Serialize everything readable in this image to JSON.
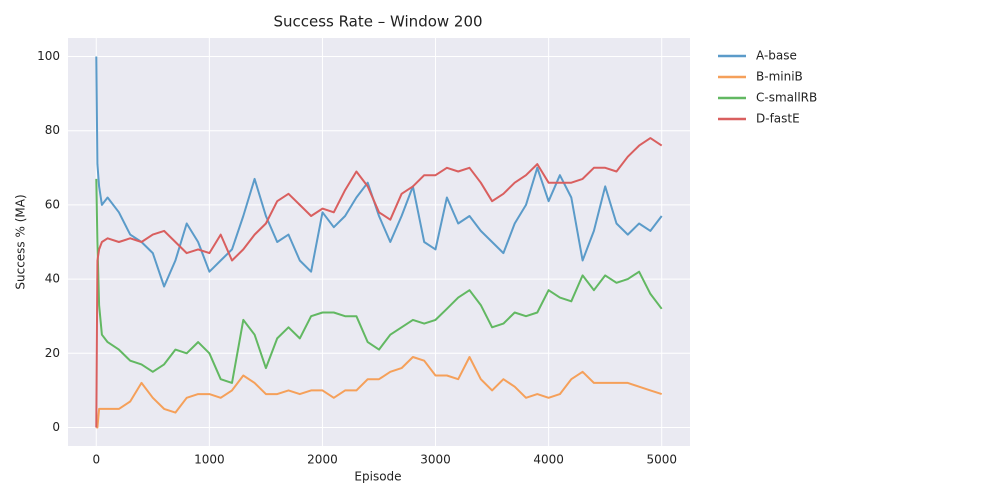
{
  "chart_data": {
    "type": "line",
    "title": "Success Rate – Window 200",
    "xlabel": "Episode",
    "ylabel": "Success % (MA)",
    "x": [
      0,
      10,
      25,
      50,
      100,
      200,
      300,
      400,
      500,
      600,
      700,
      800,
      900,
      1000,
      1100,
      1200,
      1300,
      1400,
      1500,
      1600,
      1700,
      1800,
      1900,
      2000,
      2100,
      2200,
      2300,
      2400,
      2500,
      2600,
      2700,
      2800,
      2900,
      3000,
      3100,
      3200,
      3300,
      3400,
      3500,
      3600,
      3700,
      3800,
      3900,
      4000,
      4100,
      4200,
      4300,
      4400,
      4500,
      4600,
      4700,
      4800,
      4900,
      5000
    ],
    "series": [
      {
        "name": "A-base",
        "color": "#5b9bc9",
        "values": [
          100,
          71,
          65,
          60,
          62,
          58,
          52,
          50,
          47,
          38,
          45,
          55,
          50,
          42,
          45,
          48,
          57,
          67,
          57,
          50,
          52,
          45,
          42,
          58,
          54,
          57,
          62,
          66,
          57,
          50,
          57,
          65,
          50,
          48,
          62,
          55,
          57,
          53,
          50,
          47,
          55,
          60,
          70,
          61,
          68,
          62,
          45,
          53,
          65,
          55,
          52,
          55,
          53,
          57
        ]
      },
      {
        "name": "B-miniB",
        "color": "#f5a05a",
        "values": [
          0,
          0,
          5,
          5,
          5,
          5,
          7,
          12,
          8,
          5,
          4,
          8,
          9,
          9,
          8,
          10,
          14,
          12,
          9,
          9,
          10,
          9,
          10,
          10,
          8,
          10,
          10,
          13,
          13,
          15,
          16,
          19,
          18,
          14,
          14,
          13,
          19,
          13,
          10,
          13,
          11,
          8,
          9,
          8,
          9,
          13,
          15,
          12,
          12,
          12,
          12,
          11,
          10,
          9
        ]
      },
      {
        "name": "C-smallRB",
        "color": "#62b862",
        "values": [
          67,
          50,
          33,
          25,
          23,
          21,
          18,
          17,
          15,
          17,
          21,
          20,
          23,
          20,
          13,
          12,
          29,
          25,
          16,
          24,
          27,
          24,
          30,
          31,
          31,
          30,
          30,
          23,
          21,
          25,
          27,
          29,
          28,
          29,
          32,
          35,
          37,
          33,
          27,
          28,
          31,
          30,
          31,
          37,
          35,
          34,
          41,
          37,
          41,
          39,
          40,
          42,
          36,
          32
        ]
      },
      {
        "name": "D-fastE",
        "color": "#d95f5f",
        "values": [
          0,
          45,
          48,
          50,
          51,
          50,
          51,
          50,
          52,
          53,
          50,
          47,
          48,
          47,
          52,
          45,
          48,
          52,
          55,
          61,
          63,
          60,
          57,
          59,
          58,
          64,
          69,
          65,
          58,
          56,
          63,
          65,
          68,
          68,
          70,
          69,
          70,
          66,
          61,
          63,
          66,
          68,
          71,
          66,
          66,
          66,
          67,
          70,
          70,
          69,
          73,
          76,
          78,
          76
        ]
      }
    ],
    "xlim": [
      -250,
      5250
    ],
    "ylim": [
      -5,
      105
    ],
    "xticks": [
      0,
      1000,
      2000,
      3000,
      4000,
      5000
    ],
    "yticks": [
      0,
      20,
      40,
      60,
      80,
      100
    ],
    "grid": true,
    "legend": "outside right"
  }
}
